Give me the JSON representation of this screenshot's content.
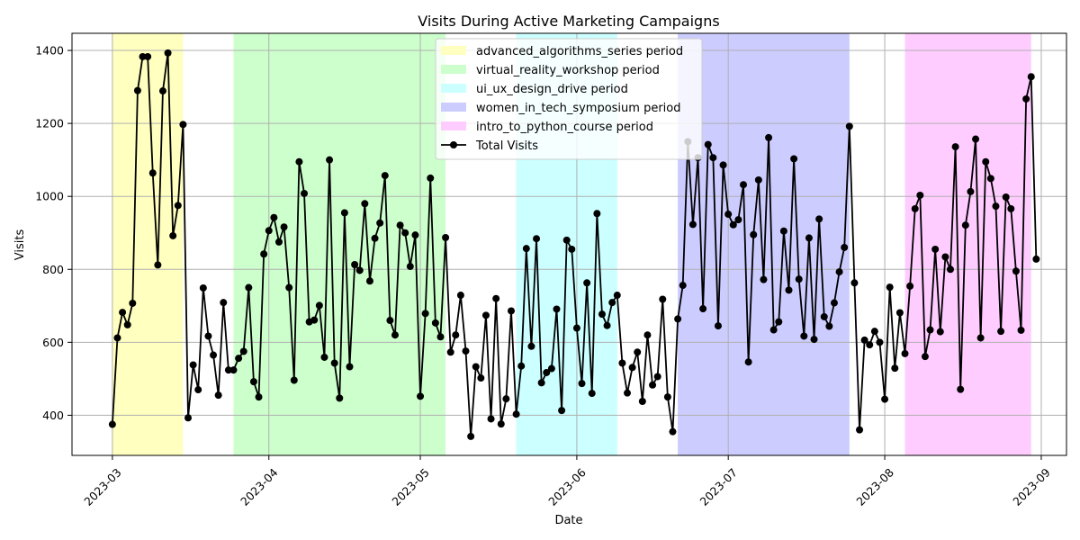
{
  "chart_data": {
    "type": "line",
    "title": "Visits During Active Marketing Campaigns",
    "xlabel": "Date",
    "ylabel": "Visits",
    "xlim": [
      "2023-02-21",
      "2023-09-06"
    ],
    "ylim": [
      290,
      1447
    ],
    "grid": true,
    "legend_position": "top-center",
    "x_ticks": [
      "2023-03",
      "2023-04",
      "2023-05",
      "2023-06",
      "2023-07",
      "2023-08",
      "2023-09"
    ],
    "y_ticks": [
      400,
      600,
      800,
      1000,
      1200,
      1400
    ],
    "periods": [
      {
        "name": "advanced_algorithms_series period",
        "start": "2023-03-01",
        "end": "2023-03-15",
        "color": "#ffffbf"
      },
      {
        "name": "virtual_reality_workshop period",
        "start": "2023-03-25",
        "end": "2023-05-06",
        "color": "#ccffcc"
      },
      {
        "name": "ui_ux_design_drive period",
        "start": "2023-05-20",
        "end": "2023-06-09",
        "color": "#ccffff"
      },
      {
        "name": "women_in_tech_symposium period",
        "start": "2023-06-21",
        "end": "2023-07-25",
        "color": "#ccccff"
      },
      {
        "name": "intro_to_python_course period",
        "start": "2023-08-05",
        "end": "2023-08-30",
        "color": "#ffccff"
      }
    ],
    "series": [
      {
        "name": "Total Visits",
        "color": "#000000",
        "start_date": "2023-03-01",
        "values": [
          375,
          612,
          682,
          648,
          707,
          1290,
          1383,
          1383,
          1064,
          812,
          1289,
          1393,
          892,
          975,
          1197,
          393,
          538,
          470,
          749,
          617,
          565,
          455,
          709,
          524,
          524,
          556,
          575,
          750,
          492,
          450,
          842,
          906,
          942,
          875,
          916,
          750,
          496,
          1095,
          1008,
          656,
          661,
          701,
          559,
          1100,
          543,
          447,
          955,
          533,
          813,
          797,
          980,
          768,
          885,
          927,
          1057,
          660,
          620,
          921,
          900,
          808,
          894,
          452,
          679,
          1050,
          653,
          615,
          887,
          573,
          620,
          729,
          576,
          342,
          533,
          502,
          674,
          390,
          720,
          376,
          445,
          686,
          403,
          535,
          857,
          589,
          884,
          489,
          517,
          528,
          691,
          413,
          880,
          855,
          639,
          487,
          763,
          460,
          953,
          677,
          646,
          709,
          729,
          543,
          461,
          531,
          573,
          438,
          620,
          483,
          506,
          718,
          450,
          355,
          664,
          756,
          1150,
          923,
          1106,
          692,
          1142,
          1106,
          645,
          1086,
          951,
          922,
          936,
          1032,
          546,
          895,
          1045,
          772,
          1161,
          634,
          656,
          905,
          743,
          1103,
          773,
          617,
          886,
          608,
          938,
          670,
          644,
          708,
          793,
          860,
          1192,
          763,
          360,
          606,
          593,
          630,
          600,
          444,
          751,
          529,
          681,
          569,
          754,
          966,
          1003,
          561,
          634,
          855,
          629,
          834,
          800,
          1136,
          471,
          921,
          1013,
          1157,
          612,
          1095,
          1049,
          973,
          630,
          998,
          966,
          795,
          633,
          1267,
          1328,
          828
        ]
      }
    ]
  }
}
